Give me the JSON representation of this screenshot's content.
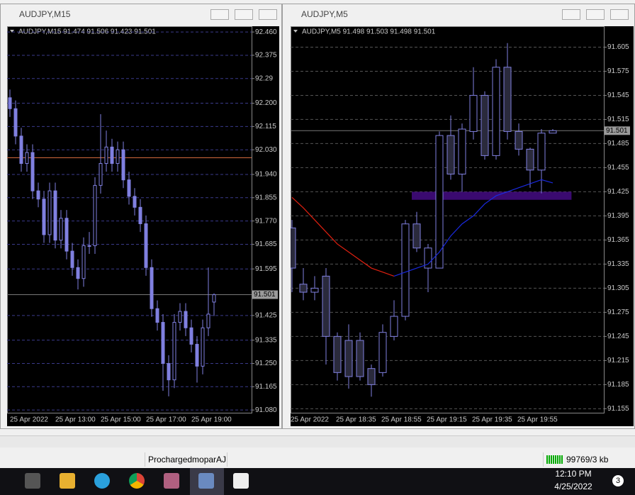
{
  "windows": [
    {
      "title": "AUDJPY,M15",
      "info": "AUDJPY,M15  91.474 91.506 91.423 91.501",
      "chart": {
        "type": "candlestick",
        "ylim": [
          91.07,
          92.481
        ],
        "yticks": [
          {
            "value": 92.46,
            "label": "92.460"
          },
          92.375,
          92.29,
          {
            "value": 92.2,
            "label": "92.200"
          },
          92.115,
          {
            "value": 92.03,
            "label": "92.030"
          },
          {
            "value": 91.94,
            "label": "91.940"
          },
          91.855,
          {
            "value": 91.77,
            "label": "91.770"
          },
          91.685,
          91.595,
          91.425,
          91.335,
          {
            "value": 91.25,
            "label": "91.250"
          },
          91.165,
          {
            "value": 91.08,
            "label": "91.080"
          }
        ],
        "x_labels": [
          "25 Apr 2022",
          "25 Apr 13:00",
          "25 Apr 15:00",
          "25 Apr 17:00",
          "25 Apr 19:00"
        ],
        "open": [
          92.22,
          92.18,
          92.08,
          91.98,
          92.02,
          91.88,
          91.85,
          91.72,
          91.88,
          91.7,
          91.78,
          91.66,
          91.6,
          91.56,
          91.68,
          91.68,
          91.9,
          91.98,
          92.04,
          91.98,
          92.03,
          91.92,
          91.86,
          91.82,
          91.76,
          91.6,
          91.45,
          91.4,
          91.25,
          91.19,
          91.4,
          91.44,
          91.38,
          91.32,
          91.24,
          91.38,
          91.474
        ],
        "high": [
          92.25,
          92.21,
          92.11,
          92.05,
          92.05,
          91.91,
          91.88,
          91.91,
          91.91,
          91.81,
          91.81,
          91.69,
          91.63,
          91.71,
          91.73,
          91.93,
          92.16,
          92.1,
          92.07,
          92.06,
          92.06,
          91.95,
          91.89,
          91.85,
          91.79,
          91.63,
          91.48,
          91.43,
          91.28,
          91.43,
          91.47,
          91.47,
          91.41,
          91.35,
          91.41,
          91.6,
          91.506
        ],
        "low": [
          92.15,
          92.05,
          91.95,
          91.95,
          91.85,
          91.82,
          91.69,
          91.69,
          91.67,
          91.67,
          91.63,
          91.57,
          91.52,
          91.53,
          91.65,
          91.65,
          91.87,
          91.95,
          91.95,
          91.95,
          91.89,
          91.83,
          91.79,
          91.73,
          91.57,
          91.42,
          91.37,
          91.15,
          91.13,
          91.16,
          91.37,
          91.35,
          91.29,
          91.18,
          91.21,
          91.35,
          91.423
        ],
        "close": [
          92.18,
          92.08,
          91.98,
          92.02,
          91.88,
          91.85,
          91.72,
          91.88,
          91.7,
          91.78,
          91.66,
          91.6,
          91.56,
          91.68,
          91.68,
          91.9,
          91.98,
          92.04,
          91.98,
          92.03,
          91.92,
          91.86,
          91.82,
          91.76,
          91.6,
          91.45,
          91.4,
          91.25,
          91.19,
          91.4,
          91.44,
          91.38,
          91.32,
          91.24,
          91.38,
          91.43,
          91.501
        ],
        "bull_color": "#8080e0",
        "bear_color": "#8080e0",
        "grid_color": "#3a3a8a",
        "level_line": 92.001,
        "level_color": "#e07040",
        "current_price": 91.501
      }
    },
    {
      "title": "AUDJPY,M5",
      "info": "AUDJPY,M5  91.498 91.503 91.498 91.501",
      "chart": {
        "type": "candlestick",
        "ylim": [
          91.15,
          91.631
        ],
        "yticks": [
          91.605,
          91.575,
          91.545,
          91.515,
          91.485,
          91.455,
          91.425,
          91.395,
          91.365,
          91.335,
          91.305,
          91.275,
          91.245,
          91.215,
          91.185,
          91.155
        ],
        "x_labels": [
          "25 Apr 2022",
          "25 Apr 18:35",
          "25 Apr 18:55",
          "25 Apr 19:15",
          "25 Apr 19:35",
          "25 Apr 19:55"
        ],
        "open": [
          91.38,
          91.31,
          91.3,
          91.32,
          91.245,
          91.24,
          91.24,
          91.205,
          91.2,
          91.245,
          91.27,
          91.385,
          91.33,
          91.33,
          91.495,
          91.447,
          91.5,
          91.545,
          91.47,
          91.58,
          91.5,
          91.478,
          91.452,
          91.498
        ],
        "high": [
          91.39,
          91.33,
          91.32,
          91.33,
          91.25,
          91.26,
          91.25,
          91.21,
          91.26,
          91.29,
          91.39,
          91.4,
          91.36,
          91.5,
          91.52,
          91.51,
          91.58,
          91.55,
          91.59,
          91.61,
          91.51,
          91.48,
          91.503,
          91.503
        ],
        "low": [
          91.3,
          91.29,
          91.29,
          91.21,
          91.19,
          91.18,
          91.19,
          91.17,
          91.195,
          91.24,
          91.265,
          91.35,
          91.3,
          91.33,
          91.44,
          91.425,
          91.49,
          91.465,
          91.465,
          91.49,
          91.47,
          91.43,
          91.423,
          91.498
        ],
        "close": [
          91.33,
          91.3,
          91.305,
          91.245,
          91.2,
          91.195,
          91.195,
          91.185,
          91.25,
          91.27,
          91.385,
          91.355,
          91.355,
          91.495,
          91.447,
          91.503,
          91.545,
          91.47,
          91.58,
          91.5,
          91.478,
          91.452,
          91.498,
          91.501
        ],
        "bull_color": "#8080e0",
        "bear_color": "#8080e0",
        "bear_fill": "#2a2a3c",
        "grid_color": "#555555",
        "ma": [
          {
            "color": "#e02010",
            "values": [
              91.418,
              91.405,
              91.39,
              91.375,
              91.36,
              91.35,
              91.34,
              91.33,
              91.325,
              91.32,
              null,
              null,
              null,
              null,
              null,
              null,
              null,
              null,
              null,
              null,
              null,
              null,
              null,
              null
            ]
          },
          {
            "color": "#1a2ae0",
            "values": [
              null,
              null,
              null,
              null,
              null,
              null,
              null,
              null,
              null,
              91.32,
              91.325,
              91.33,
              91.335,
              91.35,
              91.37,
              91.385,
              91.395,
              91.41,
              91.42,
              91.425,
              91.43,
              91.435,
              91.44,
              91.436
            ]
          }
        ],
        "zone": [
          91.415,
          91.425
        ],
        "zone_color": "#3a0a70",
        "current_price": 91.501
      }
    }
  ],
  "status_bar": {
    "profile": "ProchargedmoparAJ",
    "traffic": "99769/3 kb"
  },
  "taskbar": {
    "time": "12:10 PM",
    "date": "4/25/2022",
    "notifications": "3"
  }
}
